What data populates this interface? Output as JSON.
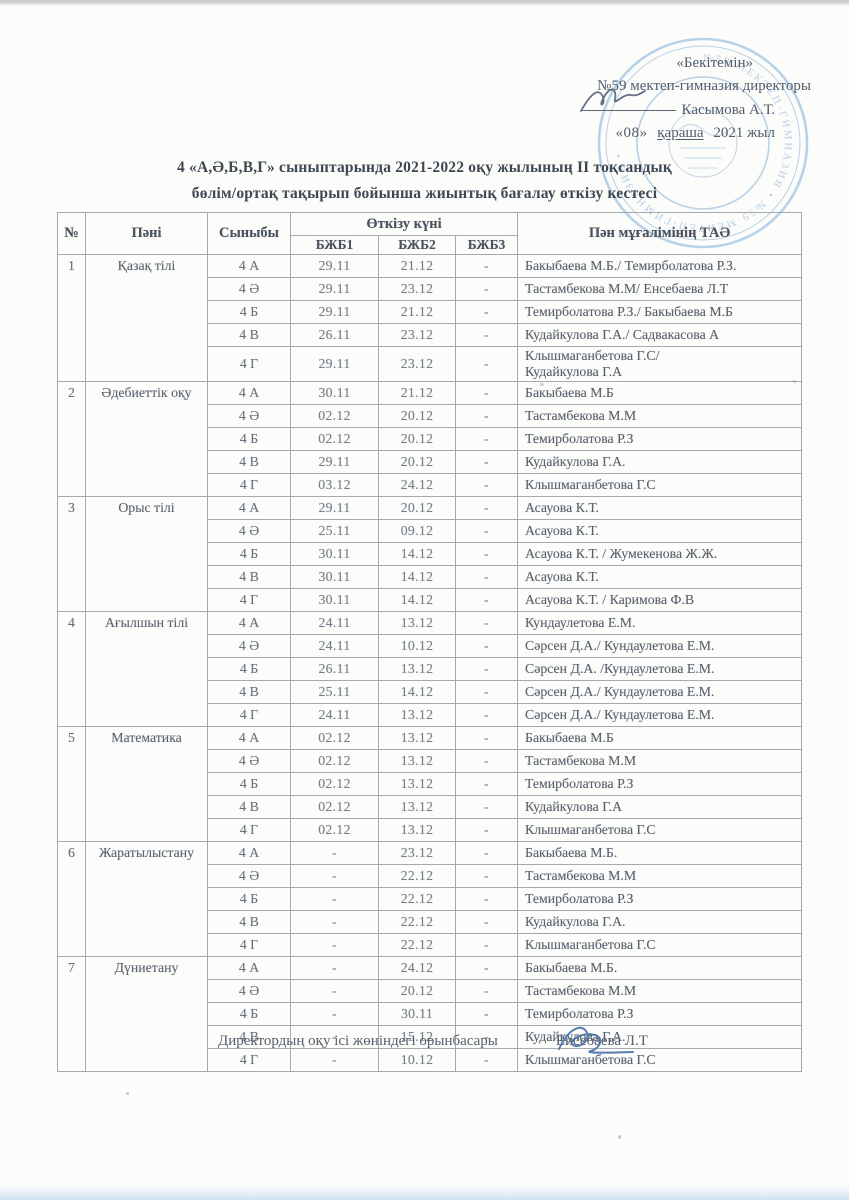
{
  "approval": {
    "line1": "«Бекітемін»",
    "line2": "№59 мектеп-гимназия директоры",
    "director_name": "Касымова А.Т.",
    "date_day": "«08»",
    "date_month": "қараша",
    "date_year": "2021 жыл"
  },
  "stamp": {
    "arc_text": "№59 МЕКТЕП-ГИМНАЗИЯ • №59 МЕКТЕП-ГИМНАЗИЯ •"
  },
  "title": {
    "line1": "4 «А,Ә,Б,В,Г»  сыныптарында 2021-2022 оқу жылының ІІ тоқсандық",
    "line2": "бөлім/ортақ тақырып бойынша жиынтық бағалау өткізу кестесі"
  },
  "table": {
    "headers": {
      "num": "№",
      "subject": "Пәні",
      "class": "Сыныбы",
      "date_group": "Өткізу күні",
      "bzb1": "БЖБ1",
      "bzb2": "БЖБ2",
      "bzb3": "БЖБ3",
      "teacher": "Пән мұғалімінің ТАӘ"
    },
    "sections": [
      {
        "num": "1",
        "subject": "Қазақ тілі",
        "rows": [
          {
            "class": "4 А",
            "b1": "29.11",
            "b2": "21.12",
            "b3": "-",
            "teacher": "Бакыбаева М.Б./ Темирболатова Р.З."
          },
          {
            "class": "4 Ә",
            "b1": "29.11",
            "b2": "23.12",
            "b3": "-",
            "teacher": "Тастамбекова М.М/ Енсебаева Л.Т"
          },
          {
            "class": "4 Б",
            "b1": "29.11",
            "b2": "21.12",
            "b3": "-",
            "teacher": "Темирболатова Р.З./ Бакыбаева М.Б"
          },
          {
            "class": "4 В",
            "b1": "26.11",
            "b2": "23.12",
            "b3": "-",
            "teacher": "Кудайкулова Г.А./ Садвакасова А"
          },
          {
            "class": "4 Г",
            "b1": "29.11",
            "b2": "23.12",
            "b3": "-",
            "teacher": "Клышмаганбетова Г.С/\nКудайкулова Г.А"
          }
        ]
      },
      {
        "num": "2",
        "subject": "Әдебиеттік оқу",
        "rows": [
          {
            "class": "4 А",
            "b1": "30.11",
            "b2": "21.12",
            "b3": "-",
            "teacher": "Бакыбаева М.Б"
          },
          {
            "class": "4 Ә",
            "b1": "02.12",
            "b2": "20.12",
            "b3": "-",
            "teacher": "Тастамбекова М.М"
          },
          {
            "class": "4 Б",
            "b1": "02.12",
            "b2": "20.12",
            "b3": "-",
            "teacher": "Темирболатова Р.З"
          },
          {
            "class": "4 В",
            "b1": "29.11",
            "b2": "20.12",
            "b3": "-",
            "teacher": "Кудайкулова Г.А."
          },
          {
            "class": "4 Г",
            "b1": "03.12",
            "b2": "24.12",
            "b3": "-",
            "teacher": "Клышмаганбетова Г.С"
          }
        ]
      },
      {
        "num": "3",
        "subject": "Орыс тілі",
        "rows": [
          {
            "class": "4 А",
            "b1": "29.11",
            "b2": "20.12",
            "b3": "-",
            "teacher": "Асауова К.Т."
          },
          {
            "class": "4 Ә",
            "b1": "25.11",
            "b2": "09.12",
            "b3": "-",
            "teacher": "Асауова К.Т."
          },
          {
            "class": "4 Б",
            "b1": "30.11",
            "b2": "14.12",
            "b3": "-",
            "teacher": "Асауова К.Т. /  Жумекенова Ж.Ж."
          },
          {
            "class": "4 В",
            "b1": "30.11",
            "b2": "14.12",
            "b3": "-",
            "teacher": "Асауова К.Т."
          },
          {
            "class": "4 Г",
            "b1": "30.11",
            "b2": "14.12",
            "b3": "-",
            "teacher": "Асауова К.Т.  /   Каримова Ф.В"
          }
        ]
      },
      {
        "num": "4",
        "subject": "Ағылшын тілі",
        "rows": [
          {
            "class": "4 А",
            "b1": "24.11",
            "b2": "13.12",
            "b3": "-",
            "teacher": "Кундаулетова Е.М."
          },
          {
            "class": "4 Ә",
            "b1": "24.11",
            "b2": "10.12",
            "b3": "-",
            "teacher": "Сәрсен Д.А./ Кундаулетова Е.М."
          },
          {
            "class": "4 Б",
            "b1": "26.11",
            "b2": "13.12",
            "b3": "-",
            "teacher": "Сәрсен Д.А. /Кундаулетова Е.М."
          },
          {
            "class": "4 В",
            "b1": "25.11",
            "b2": "14.12",
            "b3": "-",
            "teacher": "Сәрсен Д.А./ Кундаулетова Е.М."
          },
          {
            "class": "4 Г",
            "b1": "24.11",
            "b2": "13.12",
            "b3": "-",
            "teacher": "Сәрсен Д.А./ Кундаулетова Е.М."
          }
        ]
      },
      {
        "num": "5",
        "subject": "Математика",
        "rows": [
          {
            "class": "4 А",
            "b1": "02.12",
            "b2": "13.12",
            "b3": "-",
            "teacher": "Бакыбаева М.Б"
          },
          {
            "class": "4 Ә",
            "b1": "02.12",
            "b2": "13.12",
            "b3": "-",
            "teacher": "Тастамбекова М.М"
          },
          {
            "class": "4 Б",
            "b1": "02.12",
            "b2": "13.12",
            "b3": "-",
            "teacher": "Темирболатова Р.З"
          },
          {
            "class": "4 В",
            "b1": "02.12",
            "b2": "13.12",
            "b3": "-",
            "teacher": "Кудайкулова Г.А"
          },
          {
            "class": "4 Г",
            "b1": "02.12",
            "b2": "13.12",
            "b3": "-",
            "teacher": "Клышмаганбетова Г.С"
          }
        ]
      },
      {
        "num": "6",
        "subject": "Жаратылыстану",
        "rows": [
          {
            "class": "4 А",
            "b1": "-",
            "b2": "23.12",
            "b3": "-",
            "teacher": "Бакыбаева М.Б."
          },
          {
            "class": "4 Ә",
            "b1": "-",
            "b2": "22.12",
            "b3": "-",
            "teacher": "Тастамбекова М.М"
          },
          {
            "class": "4 Б",
            "b1": "-",
            "b2": "22.12",
            "b3": "-",
            "teacher": "Темирболатова Р.З"
          },
          {
            "class": "4 В",
            "b1": "-",
            "b2": "22.12",
            "b3": "-",
            "teacher": "Кудайкулова Г.А."
          },
          {
            "class": "4 Г",
            "b1": "-",
            "b2": "22.12",
            "b3": "-",
            "teacher": "Клышмаганбетова Г.С"
          }
        ]
      },
      {
        "num": "7",
        "subject": "Дүниетану",
        "rows": [
          {
            "class": "4 А",
            "b1": "-",
            "b2": "24.12",
            "b3": "-",
            "teacher": "Бакыбаева М.Б."
          },
          {
            "class": "4 Ә",
            "b1": "-",
            "b2": "20.12",
            "b3": "-",
            "teacher": "Тастамбекова М.М"
          },
          {
            "class": "4 Б",
            "b1": "-",
            "b2": "30.11",
            "b3": "-",
            "teacher": "Темирболатова Р.З"
          },
          {
            "class": "4 В",
            "b1": "-",
            "b2": "15.12",
            "b3": "-",
            "teacher": "Кудайкулова Г.А."
          },
          {
            "class": "4 Г",
            "b1": "-",
            "b2": "10.12",
            "b3": "-",
            "teacher": "Клышмаганбетова Г.С"
          }
        ]
      }
    ]
  },
  "footer": {
    "label": "Директордың оқу ісі жөніндегі орынбасары",
    "name": "Енсебаева Л.Т"
  },
  "colors": {
    "stamp_blue": "#7fafd8",
    "signature_blue": "#4f74b0",
    "pen_dark": "#55627a",
    "border_gray": "#a2a9b0",
    "text_slate": "#56616c"
  }
}
